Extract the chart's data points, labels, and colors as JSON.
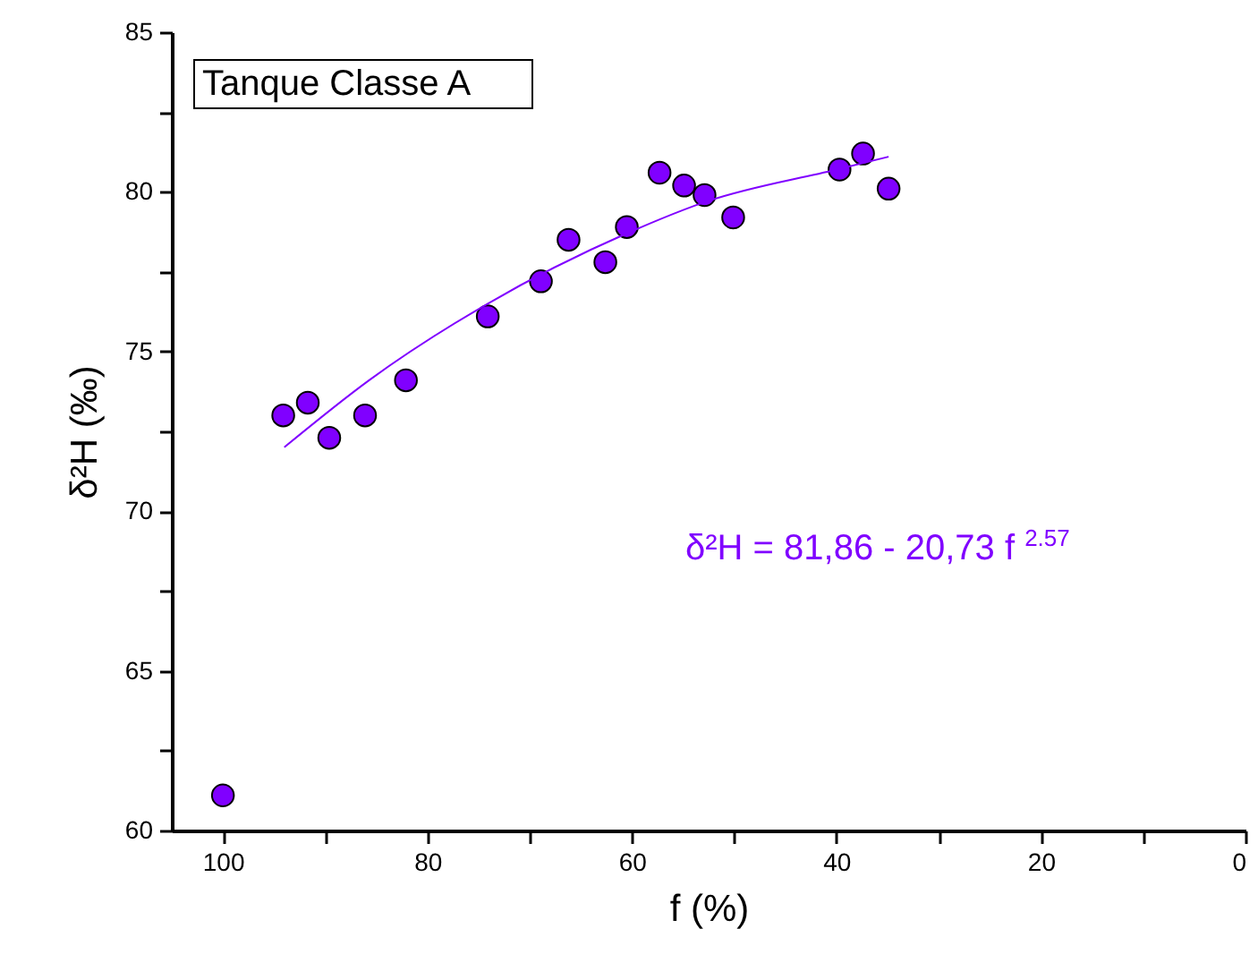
{
  "chart_data": {
    "type": "scatter",
    "title": "Tanque Classe A",
    "xlabel": "f (%)",
    "ylabel": "δ²H (‰)",
    "annotations": [
      "δ²H = 81,86 - 20,73 f $^{2.57}$"
    ],
    "xlim": [
      105,
      0
    ],
    "ylim": [
      60,
      85
    ],
    "xticks": [
      100,
      {
        "value": 90,
        "label": null
      },
      80,
      {
        "value": 70,
        "label": null
      },
      60,
      {
        "value": 50,
        "label": null
      },
      40,
      {
        "value": 30,
        "label": null
      },
      20,
      {
        "value": 10,
        "label": null
      },
      0
    ],
    "yticks": [
      60,
      {
        "value": 62.5,
        "label": null
      },
      65,
      {
        "value": 67.5,
        "label": null
      },
      70,
      {
        "value": 72.5,
        "label": null
      },
      75,
      {
        "value": 77.5,
        "label": null
      },
      80,
      {
        "value": 82.5,
        "label": null
      },
      85
    ],
    "grid": false,
    "series": [
      {
        "marker": "circle",
        "color": "#8000ff",
        "x": [
          100,
          94.1,
          91.7,
          89.6,
          86.1,
          82.1,
          74.1,
          68.9,
          66.2,
          62.6,
          60.5,
          57.3,
          54.9,
          52.9,
          50.1,
          39.7,
          37.4,
          34.9
        ],
        "values": [
          61.1,
          73.0,
          73.4,
          72.3,
          73.0,
          74.1,
          76.1,
          77.2,
          78.5,
          77.8,
          78.9,
          80.6,
          80.2,
          79.9,
          79.2,
          80.7,
          81.2,
          80.1
        ]
      },
      {
        "type": "line",
        "marker": "none",
        "color": "#8000ff",
        "x": [
          94,
          85.7,
          74.1,
          60.5,
          52.7,
          40,
          34.9
        ],
        "values": [
          72.0,
          74.1,
          76.5,
          78.7,
          79.7,
          80.7,
          81.1
        ]
      }
    ]
  }
}
